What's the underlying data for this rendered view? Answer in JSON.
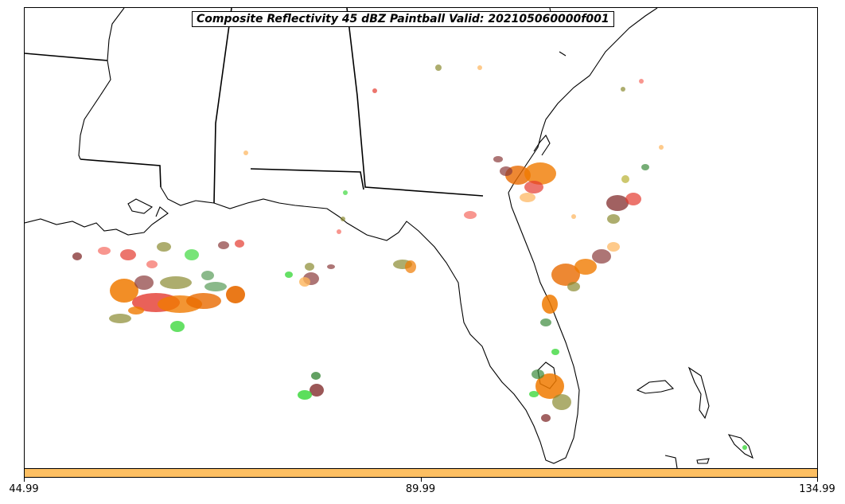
{
  "title": "Composite Reflectivity 45 dBZ Paintball Valid: 202105060000f001",
  "colorbar": {
    "color": "#fdbf62",
    "ticks": [
      {
        "label": "44.99",
        "pos": 0.0
      },
      {
        "label": "89.99",
        "pos": 0.5
      },
      {
        "label": "134.99",
        "pos": 1.0
      }
    ]
  },
  "colors": {
    "orange": "#f07a00",
    "dark_orange": "#e86a00",
    "light_orange": "#fdb45a",
    "red": "#e43a2f",
    "light_red": "#f56a60",
    "green": "#3fd83f",
    "dark_green": "#3c8a3c",
    "olive": "#8a8a30",
    "yellow_olive": "#b8b030",
    "brown": "#8a3a3a"
  }
}
